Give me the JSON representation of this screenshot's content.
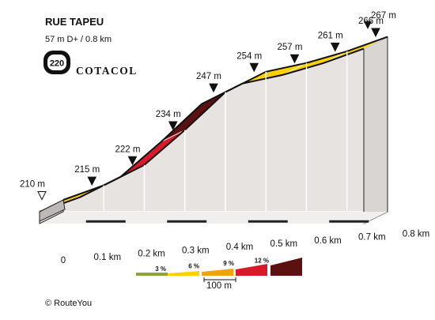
{
  "chart_data": {
    "type": "area",
    "title": "RUE TAPEU",
    "subtitle": "57 m D+ / 0.8 km",
    "x": [
      0,
      0.1,
      0.2,
      0.3,
      0.4,
      0.5,
      0.6,
      0.7,
      0.8
    ],
    "x_tick_labels": [
      "0",
      "0.1 km",
      "0.2 km",
      "0.3 km",
      "0.4 km",
      "0.5 km",
      "0.6 km",
      "0.7 km",
      "0.8 km"
    ],
    "elevation_m": [
      210,
      215,
      222,
      234,
      247,
      254,
      257,
      261,
      266
    ],
    "elevation_labels": [
      "210 m",
      "215 m",
      "222 m",
      "234 m",
      "247 m",
      "254 m",
      "257 m",
      "261 m",
      "266 m"
    ],
    "summit_label": "267 m",
    "summit_elevation_m": 267,
    "segment_colors": [
      "#fdd000",
      "#f0a30a",
      "#d7192a",
      "#5c1010",
      "#f0a30a",
      "#fdd000",
      "#fdd000",
      "#fdd000"
    ],
    "legend": {
      "labels": [
        "3 %",
        "6 %",
        "9 %",
        "12 %"
      ],
      "colors": [
        "#8da43a",
        "#fdd000",
        "#f0a30a",
        "#d7192a",
        "#5c1010"
      ],
      "scale_label": "100 m"
    }
  },
  "cotacol": {
    "number": "220",
    "name": "COTACOL"
  },
  "copyright": "© RouteYou"
}
